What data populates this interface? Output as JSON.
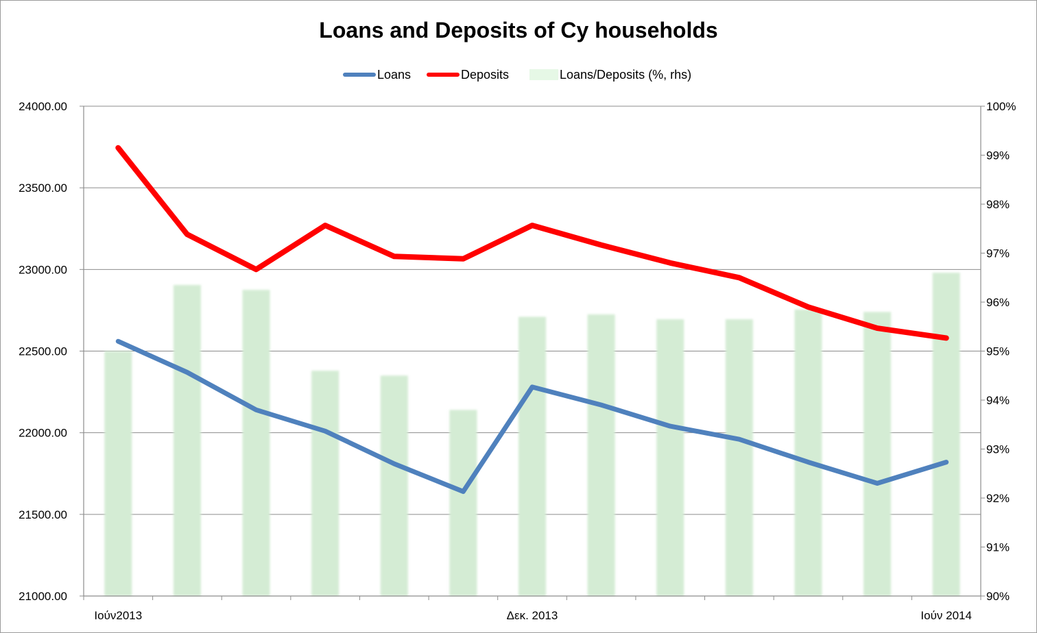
{
  "chart_data": {
    "type": "line",
    "title": "Loans and Deposits of Cy households",
    "categories": [
      "Ιούν2013",
      "",
      "",
      "",
      "",
      "",
      "Δεκ. 2013",
      "",
      "",
      "",
      "",
      "",
      "Ιούν 2014"
    ],
    "x_tick_labels": [
      "Ιούν2013",
      "Δεκ. 2013",
      "Ιούν 2014"
    ],
    "series": [
      {
        "name": "Loans",
        "axis": "left",
        "kind": "line",
        "color": "#4f81bd",
        "values": [
          22560,
          22370,
          22140,
          22010,
          21810,
          21640,
          22280,
          22170,
          22040,
          21960,
          21820,
          21690,
          21820
        ]
      },
      {
        "name": "Deposits",
        "axis": "left",
        "kind": "line",
        "color": "#ff0000",
        "values": [
          23745,
          23215,
          23000,
          23270,
          23080,
          23065,
          23270,
          23150,
          23040,
          22950,
          22770,
          22640,
          22580
        ]
      },
      {
        "name": "Loans/Deposits (%, rhs)",
        "axis": "right",
        "kind": "bar",
        "color": "#d4ecd4",
        "values": [
          95.0,
          96.35,
          96.25,
          94.6,
          94.5,
          93.8,
          95.7,
          95.75,
          95.65,
          95.65,
          95.85,
          95.8,
          96.6
        ]
      }
    ],
    "left_axis": {
      "ylim": [
        21000,
        24000
      ],
      "tick_labels": [
        "21000.00",
        "21500.00",
        "22000.00",
        "22500.00",
        "23000.00",
        "23500.00",
        "24000.00"
      ]
    },
    "right_axis": {
      "ylim": [
        90,
        100
      ],
      "tick_labels": [
        "90%",
        "91%",
        "92%",
        "93%",
        "94%",
        "95%",
        "96%",
        "97%",
        "98%",
        "99%",
        "100%"
      ]
    },
    "grid": true,
    "legend_position": "top"
  }
}
